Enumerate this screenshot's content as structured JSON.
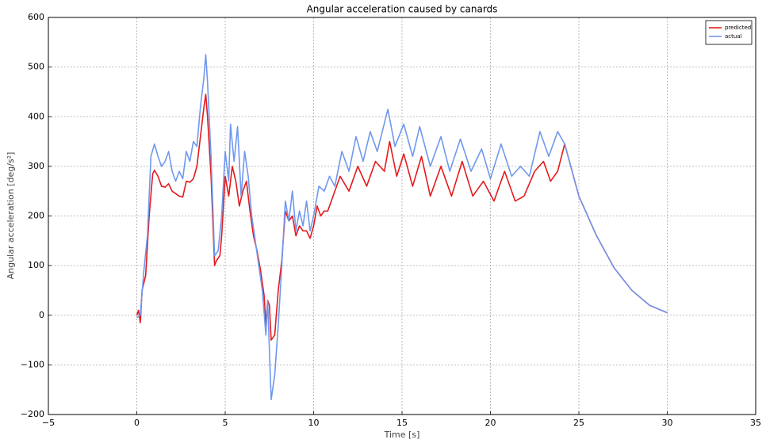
{
  "chart_data": {
    "type": "line",
    "title": "Angular acceleration caused by canards",
    "x_label": "Time [s]",
    "y_label": "Angular acceleration [deg/s²]",
    "xlim": [
      -5,
      35
    ],
    "ylim": [
      -200,
      600
    ],
    "xticks": [
      {
        "value": -5,
        "label": "−5"
      },
      0,
      5,
      10,
      15,
      20,
      25,
      30,
      35
    ],
    "yticks": [
      {
        "value": -200,
        "label": "−200"
      },
      {
        "value": -100,
        "label": "−100"
      },
      0,
      100,
      200,
      300,
      400,
      500,
      600
    ],
    "grid": true,
    "legend": "upper right",
    "series": [
      {
        "name": "predicted",
        "color": "#e41a1c",
        "x": [
          0,
          0.1,
          0.2,
          0.3,
          0.5,
          0.7,
          0.9,
          1.0,
          1.2,
          1.4,
          1.6,
          1.8,
          2.0,
          2.2,
          2.4,
          2.6,
          2.8,
          3.0,
          3.2,
          3.4,
          3.6,
          3.8,
          3.9,
          4.0,
          4.2,
          4.4,
          4.5,
          4.7,
          4.8,
          5.0,
          5.2,
          5.4,
          5.6,
          5.8,
          6.0,
          6.2,
          6.4,
          6.6,
          6.8,
          7.0,
          7.2,
          7.3,
          7.4,
          7.5,
          7.6,
          7.8,
          8.0,
          8.2,
          8.4,
          8.6,
          8.8,
          9.0,
          9.2,
          9.4,
          9.6,
          9.8,
          10.0,
          10.2,
          10.4,
          10.6,
          10.8,
          11.0,
          11.5,
          12.0,
          12.5,
          13.0,
          13.5,
          14.0,
          14.3,
          14.7,
          15.1,
          15.6,
          16.1,
          16.6,
          17.2,
          17.8,
          18.4,
          19.0,
          19.6,
          20.2,
          20.8,
          21.4,
          21.9,
          22.5,
          23.0,
          23.4,
          23.8,
          24.2,
          25,
          26,
          27,
          28,
          29,
          30
        ],
        "values": [
          0,
          10,
          -15,
          50,
          80,
          200,
          285,
          292,
          280,
          260,
          258,
          265,
          250,
          245,
          240,
          238,
          270,
          268,
          275,
          300,
          360,
          420,
          445,
          400,
          280,
          100,
          110,
          120,
          160,
          280,
          240,
          300,
          270,
          220,
          250,
          270,
          210,
          160,
          130,
          90,
          40,
          -20,
          30,
          20,
          -50,
          -40,
          50,
          110,
          210,
          190,
          200,
          160,
          180,
          170,
          170,
          155,
          180,
          220,
          200,
          210,
          210,
          230,
          280,
          250,
          300,
          260,
          310,
          290,
          350,
          280,
          325,
          260,
          320,
          240,
          300,
          240,
          310,
          240,
          270,
          230,
          290,
          230,
          240,
          290,
          310,
          270,
          290,
          345,
          240,
          160,
          95,
          50,
          20,
          5
        ]
      },
      {
        "name": "actual",
        "color": "#6f98ee",
        "x": [
          0,
          0.2,
          0.4,
          0.6,
          0.8,
          1.0,
          1.2,
          1.4,
          1.6,
          1.8,
          2.0,
          2.2,
          2.4,
          2.6,
          2.8,
          3.0,
          3.2,
          3.4,
          3.6,
          3.8,
          3.9,
          4.0,
          4.2,
          4.4,
          4.6,
          4.8,
          5.0,
          5.2,
          5.3,
          5.5,
          5.7,
          5.9,
          6.1,
          6.3,
          6.5,
          6.7,
          6.9,
          7.1,
          7.3,
          7.4,
          7.6,
          7.8,
          8.0,
          8.2,
          8.4,
          8.6,
          8.8,
          9.0,
          9.2,
          9.4,
          9.6,
          9.8,
          10.0,
          10.3,
          10.6,
          10.9,
          11.2,
          11.6,
          12.0,
          12.4,
          12.8,
          13.2,
          13.6,
          14.2,
          14.6,
          15.1,
          15.6,
          16.0,
          16.6,
          17.2,
          17.7,
          18.3,
          18.9,
          19.5,
          20.0,
          20.6,
          21.2,
          21.7,
          22.2,
          22.8,
          23.3,
          23.8,
          24.2,
          25,
          26,
          27,
          28,
          29,
          30
        ],
        "values": [
          -5,
          0,
          90,
          160,
          320,
          345,
          320,
          300,
          310,
          330,
          290,
          270,
          290,
          275,
          330,
          310,
          350,
          340,
          420,
          480,
          525,
          470,
          320,
          120,
          130,
          200,
          330,
          270,
          385,
          310,
          380,
          240,
          330,
          280,
          200,
          150,
          100,
          50,
          -40,
          30,
          -170,
          -120,
          -20,
          100,
          230,
          190,
          250,
          170,
          210,
          180,
          230,
          170,
          200,
          260,
          250,
          280,
          260,
          330,
          290,
          360,
          310,
          370,
          330,
          415,
          340,
          385,
          320,
          380,
          300,
          360,
          290,
          355,
          290,
          335,
          275,
          345,
          280,
          300,
          280,
          370,
          320,
          370,
          345,
          240,
          160,
          95,
          50,
          20,
          5
        ]
      }
    ]
  }
}
